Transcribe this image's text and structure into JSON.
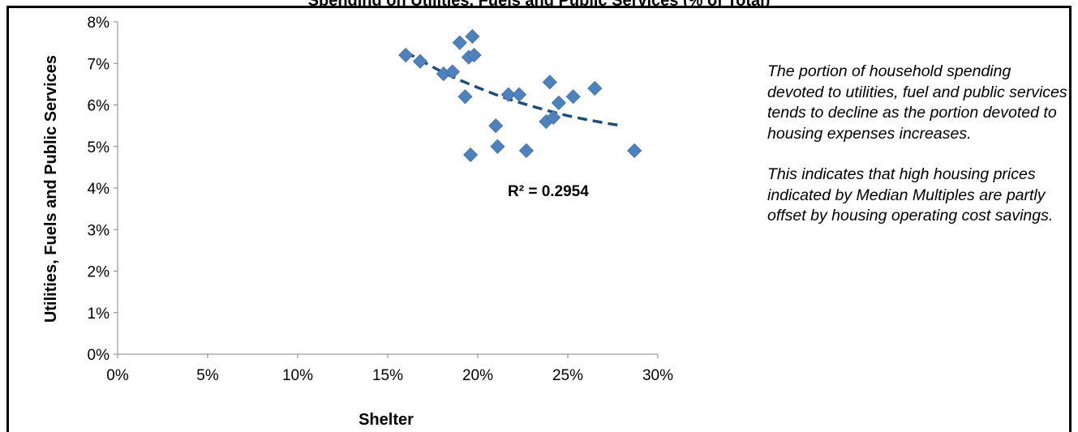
{
  "chart_data": {
    "type": "scatter",
    "title": "Spending on Utilities, Fuels and Public Services (% of Total)",
    "xlabel": "Shelter",
    "ylabel": "Utilities, Fuels and Public Services",
    "xlim": [
      0,
      0.3
    ],
    "ylim": [
      0,
      0.08
    ],
    "x_ticks": [
      "0%",
      "5%",
      "10%",
      "15%",
      "20%",
      "25%",
      "30%"
    ],
    "y_ticks": [
      "0%",
      "1%",
      "2%",
      "3%",
      "4%",
      "5%",
      "6%",
      "7%",
      "8%"
    ],
    "grid": false,
    "series": [
      {
        "marker": "diamond",
        "color": "#4f81bd",
        "points": [
          {
            "x": 0.16,
            "y": 0.072
          },
          {
            "x": 0.168,
            "y": 0.0705
          },
          {
            "x": 0.181,
            "y": 0.0675
          },
          {
            "x": 0.186,
            "y": 0.068
          },
          {
            "x": 0.19,
            "y": 0.075
          },
          {
            "x": 0.193,
            "y": 0.062
          },
          {
            "x": 0.195,
            "y": 0.0715
          },
          {
            "x": 0.196,
            "y": 0.048
          },
          {
            "x": 0.197,
            "y": 0.0765
          },
          {
            "x": 0.198,
            "y": 0.072
          },
          {
            "x": 0.21,
            "y": 0.055
          },
          {
            "x": 0.211,
            "y": 0.05
          },
          {
            "x": 0.217,
            "y": 0.0625
          },
          {
            "x": 0.223,
            "y": 0.0625
          },
          {
            "x": 0.227,
            "y": 0.049
          },
          {
            "x": 0.238,
            "y": 0.056
          },
          {
            "x": 0.24,
            "y": 0.0655
          },
          {
            "x": 0.242,
            "y": 0.057
          },
          {
            "x": 0.245,
            "y": 0.0605
          },
          {
            "x": 0.253,
            "y": 0.062
          },
          {
            "x": 0.265,
            "y": 0.064
          },
          {
            "x": 0.287,
            "y": 0.049
          }
        ]
      }
    ],
    "trendline": {
      "type": "dashed",
      "color": "#1f4e79",
      "x": [
        0.16,
        0.17,
        0.18,
        0.19,
        0.2,
        0.21,
        0.22,
        0.23,
        0.24,
        0.25,
        0.26,
        0.27,
        0.28
      ],
      "y": [
        0.0728,
        0.0703,
        0.068,
        0.066,
        0.0642,
        0.0625,
        0.061,
        0.0597,
        0.0585,
        0.0574,
        0.0565,
        0.0557,
        0.055
      ],
      "label": "R² = 0.2954"
    }
  },
  "notes": {
    "paragraph_1": "The portion of household spending devoted to utilities, fuel and public services tends to decline as the portion devoted to housing expenses increases.",
    "paragraph_2": "This indicates that high housing prices indicated by Median Multiples are partly offset by housing operating cost savings."
  }
}
